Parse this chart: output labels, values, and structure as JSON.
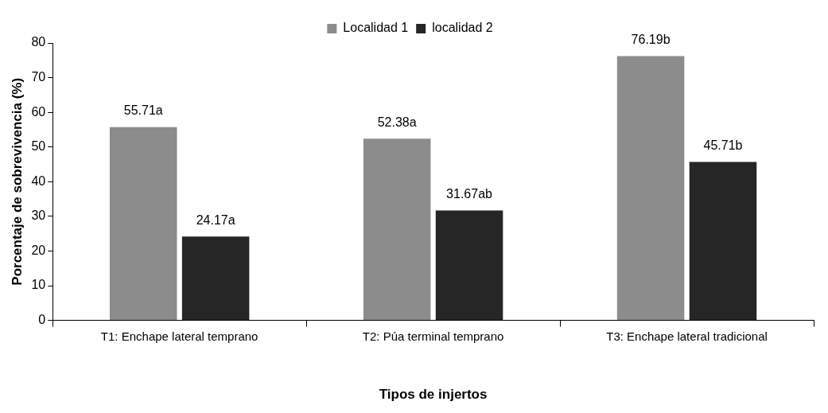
{
  "chart_data": {
    "type": "bar",
    "xlabel": "Tipos de injertos",
    "ylabel": "Porcentaje de sobrevivencia (%)",
    "categories": [
      "T1: Enchape lateral temprano",
      "T2: Púa terminal temprano",
      "T3: Enchape lateral tradicional"
    ],
    "series": [
      {
        "name": "Localidad 1",
        "color": "#8c8c8c",
        "values": [
          55.71,
          52.38,
          76.19
        ],
        "value_labels": [
          "55.71a",
          "52.38a",
          "76.19b"
        ]
      },
      {
        "name": "localidad 2",
        "color": "#262626",
        "values": [
          24.17,
          31.67,
          45.71
        ],
        "value_labels": [
          "24.17a",
          "31.67ab",
          "45.71b"
        ]
      }
    ],
    "ylim": [
      0,
      80
    ],
    "yticks": [
      0,
      10,
      20,
      30,
      40,
      50,
      60,
      70,
      80
    ],
    "grid": false,
    "legend": "top"
  }
}
